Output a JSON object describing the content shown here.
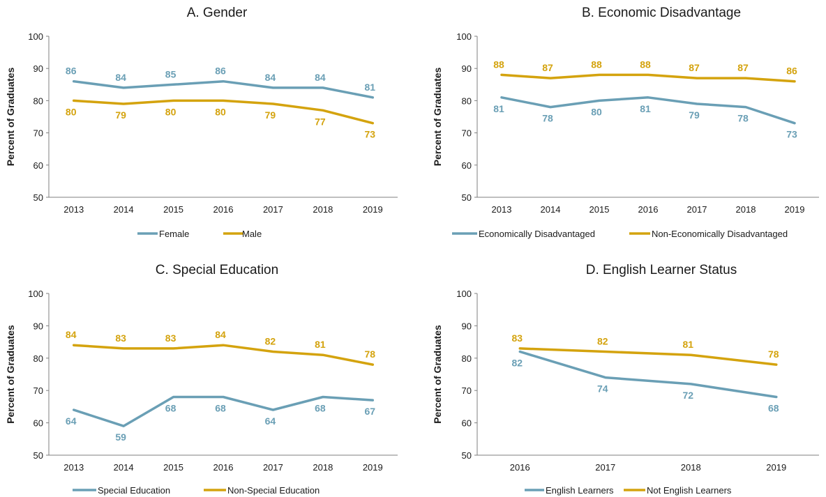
{
  "colors": {
    "series_a": "#6a9fb5",
    "series_b": "#d4a30e",
    "axis": "#7f7f7f"
  },
  "chart_data": [
    {
      "type": "line",
      "title": "A. Gender",
      "ylabel": "Percent of Graduates",
      "ylim": [
        50,
        100
      ],
      "yticks": [
        "50",
        "60",
        "70",
        "80",
        "90",
        "100"
      ],
      "x": [
        "2013",
        "2014",
        "2015",
        "2016",
        "2017",
        "2018",
        "2019"
      ],
      "series": [
        {
          "name": "Female",
          "values": [
            86,
            84,
            85,
            86,
            84,
            84,
            81
          ],
          "labels": [
            "86",
            "84",
            "85",
            "86",
            "84",
            "84",
            "81"
          ]
        },
        {
          "name": "Male",
          "values": [
            80,
            79,
            80,
            80,
            79,
            77,
            73
          ],
          "labels": [
            "80",
            "79",
            "80",
            "80",
            "79",
            "77",
            "73"
          ]
        }
      ],
      "legend": "bottom"
    },
    {
      "type": "line",
      "title": "B. Economic Disadvantage",
      "ylabel": "Percent of Graduates",
      "ylim": [
        50,
        100
      ],
      "yticks": [
        "50",
        "60",
        "70",
        "80",
        "90",
        "100"
      ],
      "x": [
        "2013",
        "2014",
        "2015",
        "2016",
        "2017",
        "2018",
        "2019"
      ],
      "series": [
        {
          "name": "Economically Disadvantaged",
          "values": [
            81,
            78,
            80,
            81,
            79,
            78,
            73
          ],
          "labels": [
            "81",
            "78",
            "80",
            "81",
            "79",
            "78",
            "73"
          ]
        },
        {
          "name": "Non-Economically Disadvantaged",
          "values": [
            88,
            87,
            88,
            88,
            87,
            87,
            86
          ],
          "labels": [
            "88",
            "87",
            "88",
            "88",
            "87",
            "87",
            "86"
          ]
        }
      ],
      "legend": "bottom"
    },
    {
      "type": "line",
      "title": "C. Special Education",
      "ylabel": "Percent of Graduates",
      "ylim": [
        50,
        100
      ],
      "yticks": [
        "50",
        "60",
        "70",
        "80",
        "90",
        "100"
      ],
      "x": [
        "2013",
        "2014",
        "2015",
        "2016",
        "2017",
        "2018",
        "2019"
      ],
      "series": [
        {
          "name": "Special Education",
          "values": [
            64,
            59,
            68,
            68,
            64,
            68,
            67
          ],
          "labels": [
            "64",
            "59",
            "68",
            "68",
            "64",
            "68",
            "67"
          ]
        },
        {
          "name": "Non-Special Education",
          "values": [
            84,
            83,
            83,
            84,
            82,
            81,
            78
          ],
          "labels": [
            "84",
            "83",
            "83",
            "84",
            "82",
            "81",
            "78"
          ]
        }
      ],
      "legend": "bottom"
    },
    {
      "type": "line",
      "title": "D. English Learner Status",
      "ylabel": "Percent of Graduates",
      "ylim": [
        50,
        100
      ],
      "yticks": [
        "50",
        "60",
        "70",
        "80",
        "90",
        "100"
      ],
      "x": [
        "2016",
        "2017",
        "2018",
        "2019"
      ],
      "series": [
        {
          "name": "English Learners",
          "values": [
            82,
            74,
            72,
            68
          ],
          "labels": [
            "82",
            "74",
            "72",
            "68"
          ]
        },
        {
          "name": "Not English Learners",
          "values": [
            83,
            82,
            81,
            78
          ],
          "labels": [
            "83",
            "82",
            "81",
            "78"
          ]
        }
      ],
      "legend": "bottom"
    }
  ]
}
